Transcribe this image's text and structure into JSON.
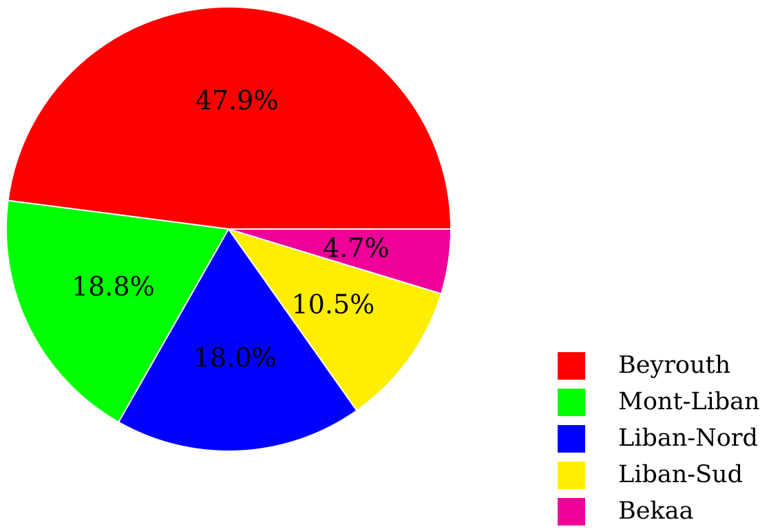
{
  "chart_data": {
    "type": "pie",
    "title": "",
    "categories": [
      "Beyrouth",
      "Mont-Liban",
      "Liban-Nord",
      "Liban-Sud",
      "Bekaa"
    ],
    "values": [
      47.9,
      18.8,
      18.0,
      10.5,
      4.7
    ],
    "labels": [
      "47.9%",
      "18.8%",
      "18.0%",
      "10.5%",
      "4.7%"
    ],
    "colors": [
      "#ff0000",
      "#00ff00",
      "#0000ff",
      "#ffee00",
      "#ee0099"
    ],
    "start_angle_deg": 0,
    "direction": "counterclockwise",
    "legend": {
      "position": "bottom-right",
      "entries": [
        "Beyrouth",
        "Mont-Liban",
        "Liban-Nord",
        "Liban-Sud",
        "Bekaa"
      ]
    }
  }
}
